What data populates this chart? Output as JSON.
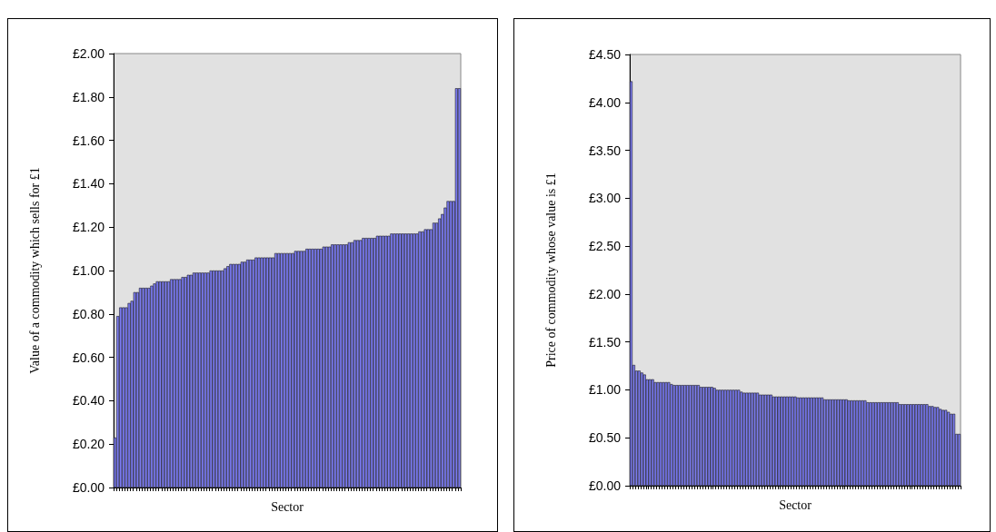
{
  "chart_data": [
    {
      "type": "bar",
      "xlabel": "Sector",
      "ylabel": "Value of a commodity which sells for £1",
      "categories": [
        null,
        null,
        null,
        null,
        null,
        null,
        null,
        null,
        null,
        null,
        null,
        null,
        null,
        null,
        null,
        null,
        null,
        null,
        null,
        null,
        null,
        null,
        null,
        null,
        null,
        null,
        null,
        null,
        null,
        null,
        null,
        null,
        null,
        null,
        null,
        null,
        null,
        null,
        null,
        null,
        null,
        null,
        null,
        null,
        null,
        null,
        null,
        null,
        null,
        null,
        null,
        null,
        null,
        null,
        null,
        null,
        null,
        null,
        null,
        null,
        null,
        null,
        null,
        null,
        null,
        null,
        null,
        null,
        null,
        null,
        null,
        null,
        null,
        null,
        null,
        null,
        null,
        null,
        null,
        null,
        null,
        null,
        null,
        null,
        null,
        null,
        null,
        null,
        null,
        null,
        null,
        null,
        null,
        null,
        null,
        null,
        null,
        null,
        null,
        null,
        null,
        null,
        null,
        null,
        null,
        null,
        null,
        null,
        null,
        null,
        null,
        null,
        null,
        null,
        null,
        null,
        null,
        null,
        null,
        null,
        null,
        null,
        null
      ],
      "color": "#7b7bf0",
      "values": [
        0.23,
        0.79,
        0.83,
        0.83,
        0.83,
        0.85,
        0.86,
        0.9,
        0.9,
        0.92,
        0.92,
        0.92,
        0.92,
        0.93,
        0.94,
        0.95,
        0.95,
        0.95,
        0.95,
        0.95,
        0.96,
        0.96,
        0.96,
        0.96,
        0.97,
        0.97,
        0.98,
        0.98,
        0.99,
        0.99,
        0.99,
        0.99,
        0.99,
        0.99,
        1.0,
        1.0,
        1.0,
        1.0,
        1.0,
        1.01,
        1.02,
        1.03,
        1.03,
        1.03,
        1.03,
        1.04,
        1.04,
        1.05,
        1.05,
        1.05,
        1.06,
        1.06,
        1.06,
        1.06,
        1.06,
        1.06,
        1.06,
        1.08,
        1.08,
        1.08,
        1.08,
        1.08,
        1.08,
        1.08,
        1.09,
        1.09,
        1.09,
        1.09,
        1.1,
        1.1,
        1.1,
        1.1,
        1.1,
        1.1,
        1.11,
        1.11,
        1.11,
        1.12,
        1.12,
        1.12,
        1.12,
        1.12,
        1.12,
        1.13,
        1.13,
        1.14,
        1.14,
        1.14,
        1.15,
        1.15,
        1.15,
        1.15,
        1.15,
        1.16,
        1.16,
        1.16,
        1.16,
        1.16,
        1.17,
        1.17,
        1.17,
        1.17,
        1.17,
        1.17,
        1.17,
        1.17,
        1.17,
        1.17,
        1.18,
        1.18,
        1.19,
        1.19,
        1.19,
        1.22,
        1.22,
        1.24,
        1.26,
        1.29,
        1.32,
        1.32,
        1.32,
        1.84,
        1.84
      ],
      "ylim": [
        0,
        2
      ],
      "yticks": [
        {
          "value": 0,
          "label": "£0.00"
        },
        {
          "value": 0.2,
          "label": "£0.20"
        },
        {
          "value": 0.4,
          "label": "£0.40"
        },
        {
          "value": 0.6,
          "label": "£0.60"
        },
        {
          "value": 0.8,
          "label": "£0.80"
        },
        {
          "value": 1,
          "label": "£1.00"
        },
        {
          "value": 1.2,
          "label": "£1.20"
        },
        {
          "value": 1.4,
          "label": "£1.40"
        },
        {
          "value": 1.6,
          "label": "£1.60"
        },
        {
          "value": 1.8,
          "label": "£1.80"
        },
        {
          "value": 2,
          "label": "£2.00"
        }
      ]
    },
    {
      "type": "bar",
      "xlabel": "Sector",
      "ylabel": "Price of commodity whose value is £1",
      "categories": [
        null,
        null,
        null,
        null,
        null,
        null,
        null,
        null,
        null,
        null,
        null,
        null,
        null,
        null,
        null,
        null,
        null,
        null,
        null,
        null,
        null,
        null,
        null,
        null,
        null,
        null,
        null,
        null,
        null,
        null,
        null,
        null,
        null,
        null,
        null,
        null,
        null,
        null,
        null,
        null,
        null,
        null,
        null,
        null,
        null,
        null,
        null,
        null,
        null,
        null,
        null,
        null,
        null,
        null,
        null,
        null,
        null,
        null,
        null,
        null,
        null,
        null,
        null,
        null,
        null,
        null,
        null,
        null,
        null,
        null,
        null,
        null,
        null,
        null,
        null,
        null,
        null,
        null,
        null,
        null,
        null,
        null,
        null,
        null,
        null,
        null,
        null,
        null,
        null,
        null,
        null,
        null,
        null,
        null,
        null,
        null,
        null,
        null,
        null,
        null,
        null,
        null,
        null,
        null,
        null,
        null,
        null,
        null,
        null,
        null,
        null,
        null,
        null,
        null,
        null,
        null,
        null,
        null,
        null,
        null,
        null,
        null,
        null
      ],
      "color": "#7b7bf0",
      "values": [
        4.22,
        1.26,
        1.2,
        1.2,
        1.18,
        1.16,
        1.11,
        1.11,
        1.11,
        1.08,
        1.08,
        1.08,
        1.08,
        1.08,
        1.08,
        1.06,
        1.05,
        1.05,
        1.05,
        1.05,
        1.05,
        1.05,
        1.05,
        1.05,
        1.05,
        1.05,
        1.03,
        1.03,
        1.03,
        1.03,
        1.03,
        1.02,
        1.0,
        1.0,
        1.0,
        1.0,
        1.0,
        1.0,
        1.0,
        1.0,
        1.0,
        0.98,
        0.97,
        0.97,
        0.97,
        0.97,
        0.97,
        0.97,
        0.95,
        0.95,
        0.95,
        0.95,
        0.95,
        0.93,
        0.93,
        0.93,
        0.93,
        0.93,
        0.93,
        0.93,
        0.93,
        0.93,
        0.92,
        0.92,
        0.92,
        0.92,
        0.92,
        0.92,
        0.92,
        0.92,
        0.92,
        0.92,
        0.9,
        0.9,
        0.9,
        0.9,
        0.9,
        0.9,
        0.9,
        0.9,
        0.9,
        0.89,
        0.89,
        0.89,
        0.89,
        0.89,
        0.89,
        0.89,
        0.87,
        0.87,
        0.87,
        0.87,
        0.87,
        0.87,
        0.87,
        0.87,
        0.87,
        0.87,
        0.87,
        0.87,
        0.85,
        0.85,
        0.85,
        0.85,
        0.85,
        0.85,
        0.85,
        0.85,
        0.85,
        0.85,
        0.85,
        0.83,
        0.83,
        0.82,
        0.82,
        0.8,
        0.79,
        0.79,
        0.77,
        0.75,
        0.75,
        0.54,
        0.54
      ],
      "ylim": [
        0,
        4.5
      ],
      "yticks": [
        {
          "value": 0,
          "label": "£0.00"
        },
        {
          "value": 0.5,
          "label": "£0.50"
        },
        {
          "value": 1,
          "label": "£1.00"
        },
        {
          "value": 1.5,
          "label": "£1.50"
        },
        {
          "value": 2,
          "label": "£2.00"
        },
        {
          "value": 2.5,
          "label": "£2.50"
        },
        {
          "value": 3,
          "label": "£3.00"
        },
        {
          "value": 3.5,
          "label": "£3.50"
        },
        {
          "value": 4,
          "label": "£4.00"
        },
        {
          "value": 4.5,
          "label": "£4.50"
        }
      ]
    }
  ]
}
